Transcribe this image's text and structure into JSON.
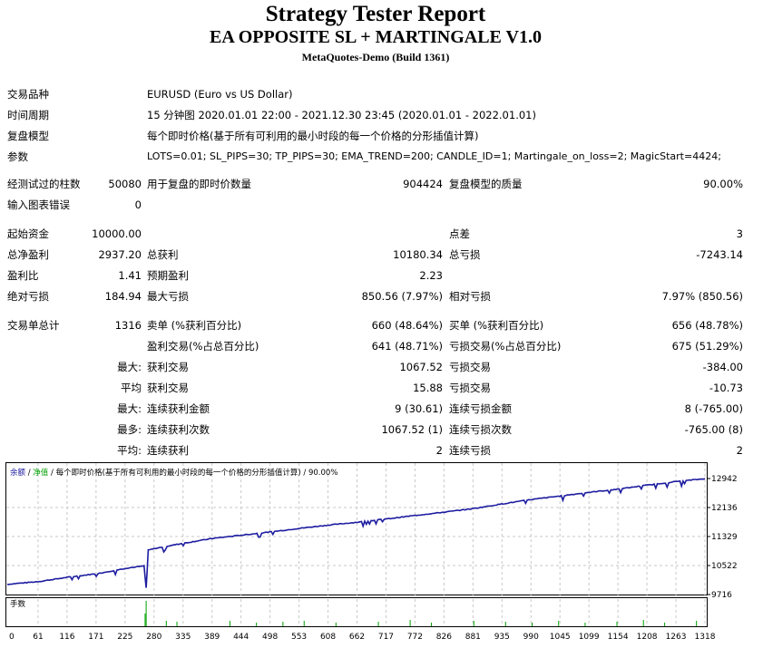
{
  "header": {
    "title": "Strategy Tester Report",
    "subtitle": "EA OPPOSITE SL + MARTINGALE V1.0",
    "build": "MetaQuotes-Demo (Build 1361)"
  },
  "info": {
    "symbol_label": "交易品种",
    "symbol_value": "EURUSD (Euro vs US Dollar)",
    "period_label": "时间周期",
    "period_value": "15 分钟图 2020.01.01 22:00 - 2021.12.30 23:45 (2020.01.01 - 2022.01.01)",
    "model_label": "复盘模型",
    "model_value": "每个即时价格(基于所有可利用的最小时段的每一个价格的分形插值计算)",
    "params_label": "参数",
    "params_value": "LOTS=0.01; SL_PIPS=30; TP_PIPS=30; EMA_TREND=200; CANDLE_ID=1; Martingale_on_loss=2; MagicStart=4424;"
  },
  "bars": {
    "bars_label": "经测试过的柱数",
    "bars_value": "50080",
    "ticks_label": "用于复盘的即时价数量",
    "ticks_value": "904424",
    "quality_label": "复盘模型的质量",
    "quality_value": "90.00%",
    "errors_label": "输入图表错误",
    "errors_value": "0"
  },
  "stats": {
    "deposit_label": "起始资金",
    "deposit_value": "10000.00",
    "spread_label": "点差",
    "spread_value": "3",
    "net_label": "总净盈利",
    "net_value": "2937.20",
    "gross_profit_label": "总获利",
    "gross_profit_value": "10180.34",
    "gross_loss_label": "总亏损",
    "gross_loss_value": "-7243.14",
    "pf_label": "盈利比",
    "pf_value": "1.41",
    "payoff_label": "预期盈利",
    "payoff_value": "2.23",
    "abs_dd_label": "绝对亏损",
    "abs_dd_value": "184.94",
    "max_dd_label": "最大亏损",
    "max_dd_value": "850.56 (7.97%)",
    "rel_dd_label": "相对亏损",
    "rel_dd_value": "7.97% (850.56)"
  },
  "trades": {
    "total_label": "交易单总计",
    "total_value": "1316",
    "short_label": "卖单 (%获利百分比)",
    "short_value": "660 (48.64%)",
    "long_label": "买单 (%获利百分比)",
    "long_value": "656 (48.78%)",
    "profit_trades_label": "盈利交易(%占总百分比)",
    "profit_trades_value": "641 (48.71%)",
    "loss_trades_label": "亏损交易(%占总百分比)",
    "loss_trades_value": "675 (51.29%)",
    "max_prefix": "最大:",
    "largest_profit_label": "获利交易",
    "largest_profit_value": "1067.52",
    "largest_loss_label": "亏损交易",
    "largest_loss_value": "-384.00",
    "avg_prefix": "平均",
    "avg_profit_label": "获利交易",
    "avg_profit_value": "15.88",
    "avg_loss_label": "亏损交易",
    "avg_loss_value": "-10.73",
    "max2_prefix": "最大:",
    "cons_win_amt_label": "连续获利金额",
    "cons_win_amt_value": "9 (30.61)",
    "cons_loss_amt_label": "连续亏损金额",
    "cons_loss_amt_value": "8 (-765.00)",
    "most_prefix": "最多:",
    "cons_win_cnt_label": "连续获利次数",
    "cons_win_cnt_value": "1067.52 (1)",
    "cons_loss_cnt_label": "连续亏损次数",
    "cons_loss_cnt_value": "-765.00 (8)",
    "avg2_prefix": "平均:",
    "avg_cons_win_label": "连续获利",
    "avg_cons_win_value": "2",
    "avg_cons_loss_label": "连续亏损",
    "avg_cons_loss_value": "2"
  },
  "chart_data": {
    "type": "line",
    "legend": {
      "balance": "余额",
      "sep1": " / ",
      "equity": "净值",
      "rest": " / 每个即时价格(基于所有可利用的最小时段的每一个价格的分形插值计算) / 90.00%"
    },
    "lots_label": "手数",
    "y_ticks": [
      "12942",
      "12136",
      "11329",
      "10522",
      "9716"
    ],
    "x_ticks": [
      "0",
      "61",
      "116",
      "171",
      "225",
      "280",
      "335",
      "389",
      "444",
      "498",
      "553",
      "608",
      "662",
      "717",
      "772",
      "826",
      "881",
      "935",
      "990",
      "1045",
      "1099",
      "1154",
      "1208",
      "1263",
      "1318"
    ],
    "ylim": [
      9716,
      12942
    ],
    "xlim": [
      0,
      1316
    ],
    "series": [
      {
        "values": [
          [
            0,
            10000
          ],
          [
            61,
            10080
          ],
          [
            116,
            10200
          ],
          [
            171,
            10300
          ],
          [
            225,
            10450
          ],
          [
            258,
            10510
          ],
          [
            262,
            9900
          ],
          [
            266,
            10950
          ],
          [
            280,
            11000
          ],
          [
            335,
            11150
          ],
          [
            389,
            11280
          ],
          [
            444,
            11370
          ],
          [
            498,
            11460
          ],
          [
            553,
            11560
          ],
          [
            608,
            11650
          ],
          [
            662,
            11730
          ],
          [
            717,
            11820
          ],
          [
            772,
            11920
          ],
          [
            826,
            12010
          ],
          [
            881,
            12110
          ],
          [
            935,
            12240
          ],
          [
            990,
            12360
          ],
          [
            1045,
            12460
          ],
          [
            1099,
            12560
          ],
          [
            1154,
            12650
          ],
          [
            1208,
            12760
          ],
          [
            1263,
            12860
          ],
          [
            1316,
            12937
          ]
        ]
      }
    ],
    "colors": {
      "balance": "#1c1ca0",
      "grid": "#c8c8c8",
      "lots": "#00a000"
    }
  }
}
